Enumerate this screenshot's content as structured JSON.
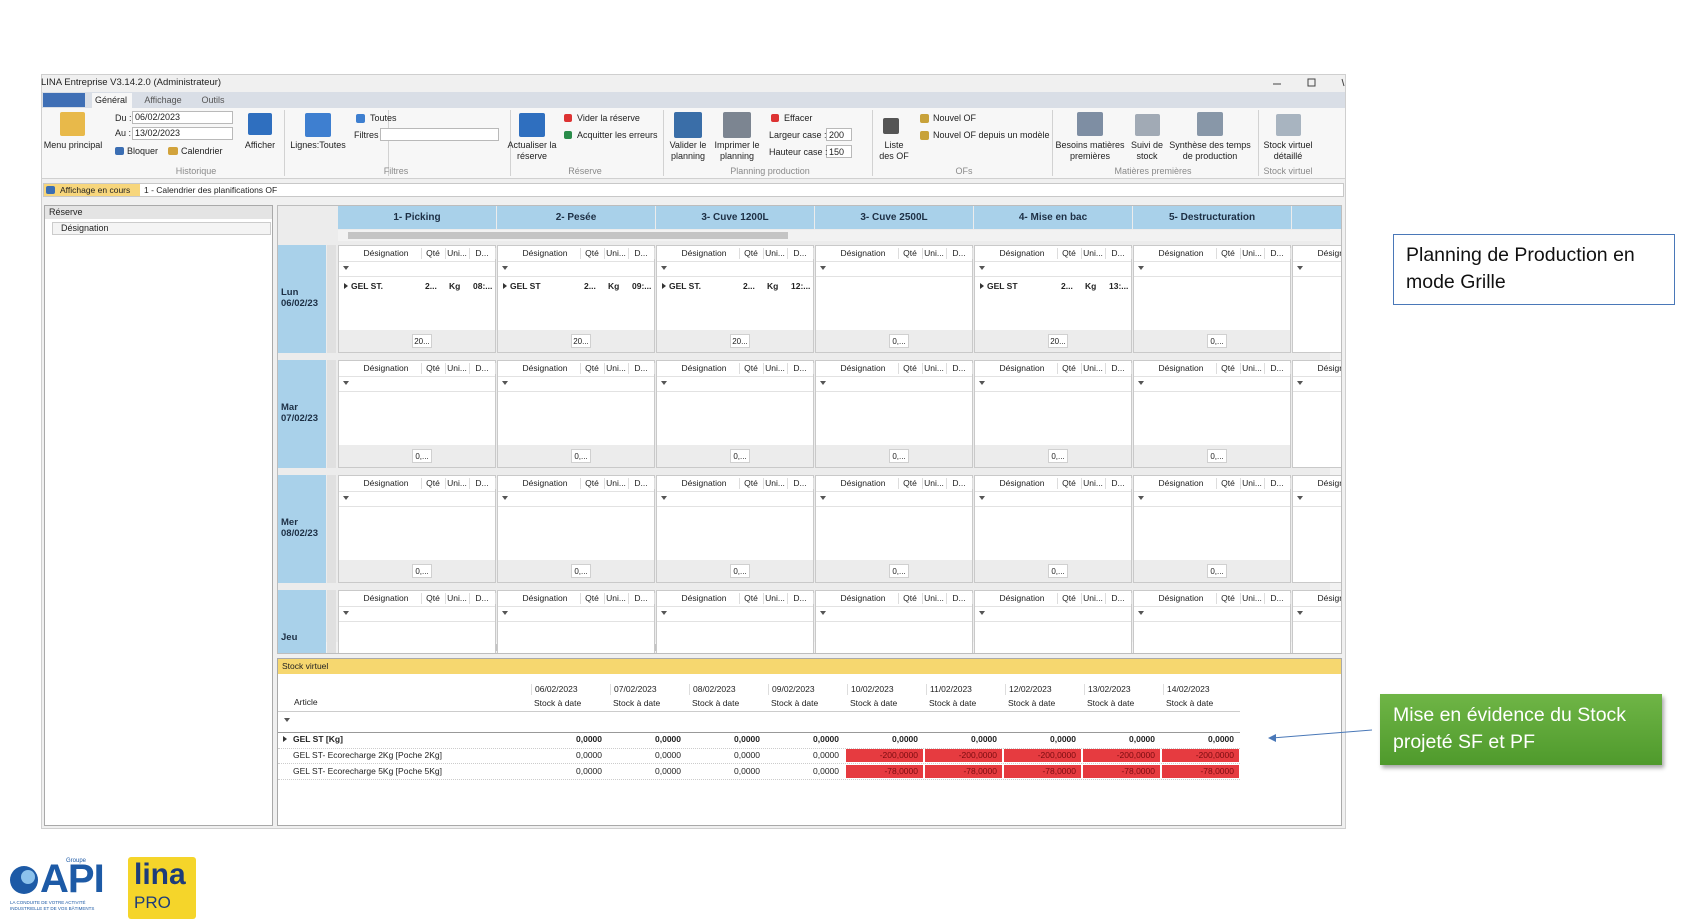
{
  "window": {
    "title": "LINA Entreprise  V3.14.2.0  (Administrateur)",
    "tabs": [
      "Général",
      "Affichage",
      "Outils"
    ]
  },
  "ribbon": {
    "historique": {
      "label": "Historique",
      "menu": "Menu principal",
      "du_label": "Du :",
      "du": "06/02/2023",
      "au_label": "Au :",
      "au": "13/02/2023",
      "bloquer": "Bloquer",
      "calendrier": "Calendrier",
      "afficher": "Afficher"
    },
    "filtres": {
      "label": "Filtres",
      "lignes": "Lignes:Toutes",
      "toutes": "Toutes",
      "filtres": "Filtres"
    },
    "reserve": {
      "label": "Réserve",
      "actualiser": "Actualiser la réserve",
      "vider": "Vider la réserve",
      "acquitter": "Acquitter les erreurs"
    },
    "planning": {
      "label": "Planning production",
      "valider": "Valider le planning",
      "imprimer": "Imprimer le planning",
      "effacer": "Effacer",
      "largeur_label": "Largeur case :",
      "largeur": "200",
      "hauteur_label": "Hauteur case :",
      "hauteur": "150"
    },
    "ofs": {
      "label": "OFs",
      "liste": "Liste des OF",
      "nouvel": "Nouvel OF",
      "modele": "Nouvel OF depuis un modèle"
    },
    "matieres": {
      "label": "Matières premières",
      "besoins": "Besoins matières premières",
      "suivi": "Suivi de stock",
      "synthese": "Synthèse des temps de production"
    },
    "stock": {
      "label": "Stock virtuel",
      "detail": "Stock virtuel détaillé"
    }
  },
  "view_bar": {
    "label": "Affichage en cours",
    "value": "1 - Calendrier des planifications OF"
  },
  "reserve_panel": {
    "title": "Réserve",
    "column": "Désignation"
  },
  "planning": {
    "columns": [
      "1- Picking",
      "2- Pesée",
      "3- Cuve 1200L",
      "3- Cuve 2500L",
      "4- Mise en bac",
      "5- Destructuration"
    ],
    "cell_columns": [
      "Désignation",
      "Qté",
      "Uni...",
      "D..."
    ],
    "rows": [
      {
        "day": "Lun",
        "date": "06/02/23",
        "cells": [
          {
            "entry": [
              "GEL ST.",
              "2...",
              "Kg",
              "08:..."
            ],
            "footer": "20..."
          },
          {
            "entry": [
              "GEL ST",
              "2...",
              "Kg",
              "09:..."
            ],
            "footer": "20..."
          },
          {
            "entry": [
              "GEL ST.",
              "2...",
              "Kg",
              "12:..."
            ],
            "footer": "20..."
          },
          {
            "footer": "0,..."
          },
          {
            "entry": [
              "GEL ST",
              "2...",
              "Kg",
              "13:..."
            ],
            "footer": "20..."
          },
          {
            "footer": "0,..."
          }
        ]
      },
      {
        "day": "Mar",
        "date": "07/02/23",
        "cells": [
          {
            "footer": "0,..."
          },
          {
            "footer": "0,..."
          },
          {
            "footer": "0,..."
          },
          {
            "footer": "0,..."
          },
          {
            "footer": "0,..."
          },
          {
            "footer": "0,..."
          }
        ]
      },
      {
        "day": "Mer",
        "date": "08/02/23",
        "cells": [
          {
            "footer": "0,..."
          },
          {
            "footer": "0,..."
          },
          {
            "footer": "0,..."
          },
          {
            "footer": "0,..."
          },
          {
            "footer": "0,..."
          },
          {
            "footer": "0,..."
          }
        ]
      },
      {
        "day": "Jeu",
        "cells": [
          {},
          {},
          {},
          {},
          {},
          {}
        ]
      }
    ]
  },
  "stock_virtuel": {
    "title": "Stock virtuel",
    "article": "Article",
    "sub": "Stock à date",
    "negative_color": "#e63b40",
    "dates": [
      "06/02/2023",
      "07/02/2023",
      "08/02/2023",
      "09/02/2023",
      "10/02/2023",
      "11/02/2023",
      "12/02/2023",
      "13/02/2023",
      "14/02/2023"
    ],
    "rows": [
      {
        "article": "GEL ST [Kg]",
        "bold": true,
        "values": [
          "0,0000",
          "0,0000",
          "0,0000",
          "0,0000",
          "0,0000",
          "0,0000",
          "0,0000",
          "0,0000",
          "0,0000"
        ]
      },
      {
        "article": "GEL ST- Ecorecharge 2Kg [Poche 2Kg]",
        "values": [
          "0,0000",
          "0,0000",
          "0,0000",
          "0,0000",
          "-200,0000",
          "-200,0000",
          "-200,0000",
          "-200,0000",
          "-200,0000"
        ]
      },
      {
        "article": "GEL ST- Ecorecharge 5Kg [Poche 5Kg]",
        "values": [
          "0,0000",
          "0,0000",
          "0,0000",
          "0,0000",
          "-78,0000",
          "-78,0000",
          "-78,0000",
          "-78,0000",
          "-78,0000"
        ]
      }
    ]
  },
  "callouts": [
    "Planning de Production en mode Grille",
    "Mise en évidence du Stock projeté SF et PF"
  ],
  "logo": {
    "group": "Groupe",
    "api": "API",
    "tagline": "LA CONDUITE DE VOTRE ACTIVITÉ INDUSTRIELLE ET DE VOS BÂTIMENTS",
    "lina": "lina",
    "pro": "PRO"
  }
}
